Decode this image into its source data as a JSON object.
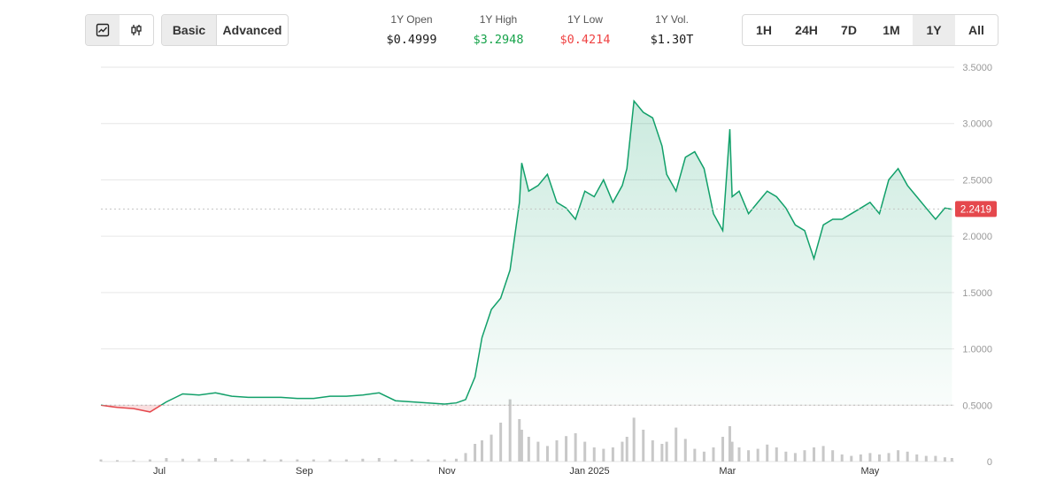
{
  "toolbar": {
    "chart_types": [
      {
        "icon": "line-chart-icon",
        "active": true
      },
      {
        "icon": "candlestick-icon",
        "active": false
      }
    ],
    "modes": [
      {
        "label": "Basic",
        "active": true
      },
      {
        "label": "Advanced",
        "active": false
      }
    ],
    "ranges": [
      {
        "label": "1H",
        "active": false
      },
      {
        "label": "24H",
        "active": false
      },
      {
        "label": "7D",
        "active": false
      },
      {
        "label": "1M",
        "active": false
      },
      {
        "label": "1Y",
        "active": true
      },
      {
        "label": "All",
        "active": false
      }
    ]
  },
  "stats": [
    {
      "label": "1Y Open",
      "value": "$0.4999",
      "tone": "neutral"
    },
    {
      "label": "1Y High",
      "value": "$3.2948",
      "tone": "up"
    },
    {
      "label": "1Y Low",
      "value": "$0.4214",
      "tone": "down"
    },
    {
      "label": "1Y Vol.",
      "value": "$1.30T",
      "tone": "neutral"
    }
  ],
  "colors": {
    "up": "#16a34a",
    "down": "#ef4444",
    "line_up": "#12a06a",
    "line_down": "#e5484d",
    "grid": "#e6e6e6",
    "volume": "#c8c8c8",
    "current_badge": "#e5484d"
  },
  "chart_data": {
    "type": "line",
    "title": "",
    "xlabel": "",
    "ylabel": "",
    "ylim": [
      0,
      3.5
    ],
    "yticks": [
      "0",
      "0.5000",
      "1.0000",
      "1.5000",
      "2.0000",
      "2.5000",
      "3.0000",
      "3.5000"
    ],
    "xticks": [
      "Jul",
      "Sep",
      "Nov",
      "Jan 2025",
      "Mar",
      "May"
    ],
    "baseline": 0.4999,
    "current_price": "2.2419",
    "x": [
      "2024-06-06",
      "2024-06-13",
      "2024-06-20",
      "2024-06-27",
      "2024-07-04",
      "2024-07-11",
      "2024-07-18",
      "2024-07-25",
      "2024-08-01",
      "2024-08-08",
      "2024-08-15",
      "2024-08-22",
      "2024-08-29",
      "2024-09-05",
      "2024-09-12",
      "2024-09-19",
      "2024-09-26",
      "2024-10-03",
      "2024-10-10",
      "2024-10-17",
      "2024-10-24",
      "2024-10-31",
      "2024-11-05",
      "2024-11-09",
      "2024-11-13",
      "2024-11-16",
      "2024-11-20",
      "2024-11-24",
      "2024-11-28",
      "2024-12-02",
      "2024-12-03",
      "2024-12-06",
      "2024-12-10",
      "2024-12-14",
      "2024-12-18",
      "2024-12-22",
      "2024-12-26",
      "2024-12-30",
      "2025-01-03",
      "2025-01-07",
      "2025-01-11",
      "2025-01-15",
      "2025-01-17",
      "2025-01-20",
      "2025-01-24",
      "2025-01-28",
      "2025-02-01",
      "2025-02-03",
      "2025-02-07",
      "2025-02-11",
      "2025-02-15",
      "2025-02-19",
      "2025-02-23",
      "2025-02-27",
      "2025-03-02",
      "2025-03-03",
      "2025-03-06",
      "2025-03-10",
      "2025-03-14",
      "2025-03-18",
      "2025-03-22",
      "2025-03-26",
      "2025-03-30",
      "2025-04-03",
      "2025-04-07",
      "2025-04-11",
      "2025-04-15",
      "2025-04-19",
      "2025-04-23",
      "2025-04-27",
      "2025-05-01",
      "2025-05-05",
      "2025-05-09",
      "2025-05-13",
      "2025-05-17",
      "2025-05-21",
      "2025-05-25",
      "2025-05-29",
      "2025-06-02",
      "2025-06-05"
    ],
    "y": [
      0.5,
      0.48,
      0.47,
      0.44,
      0.53,
      0.6,
      0.59,
      0.61,
      0.58,
      0.57,
      0.57,
      0.57,
      0.56,
      0.56,
      0.58,
      0.58,
      0.59,
      0.61,
      0.54,
      0.53,
      0.52,
      0.51,
      0.52,
      0.55,
      0.75,
      1.1,
      1.35,
      1.45,
      1.7,
      2.3,
      2.65,
      2.4,
      2.45,
      2.55,
      2.3,
      2.25,
      2.15,
      2.4,
      2.35,
      2.5,
      2.3,
      2.45,
      2.6,
      3.2,
      3.1,
      3.05,
      2.8,
      2.55,
      2.4,
      2.7,
      2.75,
      2.6,
      2.2,
      2.05,
      2.95,
      2.35,
      2.4,
      2.2,
      2.3,
      2.4,
      2.35,
      2.25,
      2.1,
      2.05,
      1.8,
      2.1,
      2.15,
      2.15,
      2.2,
      2.25,
      2.3,
      2.2,
      2.5,
      2.6,
      2.45,
      2.35,
      2.25,
      2.15,
      2.25,
      2.24
    ],
    "volume": [
      0.03,
      0.02,
      0.02,
      0.03,
      0.05,
      0.04,
      0.04,
      0.05,
      0.03,
      0.04,
      0.03,
      0.03,
      0.03,
      0.03,
      0.03,
      0.03,
      0.04,
      0.05,
      0.03,
      0.03,
      0.03,
      0.03,
      0.04,
      0.12,
      0.25,
      0.3,
      0.38,
      0.55,
      0.88,
      0.6,
      0.45,
      0.35,
      0.28,
      0.22,
      0.3,
      0.36,
      0.4,
      0.28,
      0.2,
      0.18,
      0.2,
      0.28,
      0.35,
      0.62,
      0.45,
      0.3,
      0.25,
      0.28,
      0.48,
      0.32,
      0.18,
      0.14,
      0.2,
      0.35,
      0.5,
      0.28,
      0.2,
      0.16,
      0.18,
      0.24,
      0.2,
      0.14,
      0.12,
      0.16,
      0.2,
      0.22,
      0.16,
      0.1,
      0.08,
      0.1,
      0.12,
      0.1,
      0.12,
      0.16,
      0.14,
      0.1,
      0.08,
      0.08,
      0.06,
      0.05
    ]
  }
}
